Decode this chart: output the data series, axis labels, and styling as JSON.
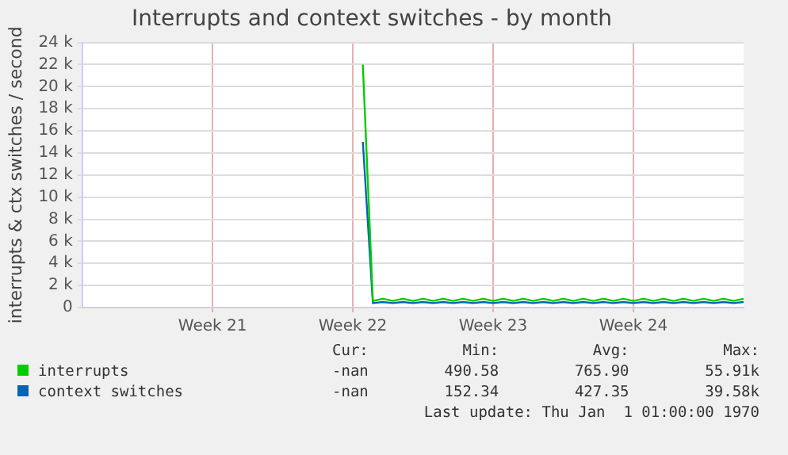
{
  "chart_data": {
    "type": "line",
    "title": "Interrupts and context switches - by month",
    "ylabel": "interrupts & ctx switches / second",
    "categories": [
      null,
      null,
      null,
      null,
      null,
      null,
      null,
      null,
      null,
      null,
      null,
      null,
      null,
      "Week 21",
      null,
      null,
      null,
      null,
      null,
      null,
      null,
      null,
      null,
      null,
      null,
      null,
      null,
      "Week 22",
      null,
      null,
      null,
      null,
      null,
      null,
      null,
      null,
      null,
      null,
      null,
      null,
      null,
      "Week 23",
      null,
      null,
      null,
      null,
      null,
      null,
      null,
      null,
      null,
      null,
      null,
      null,
      null,
      "Week 24",
      null,
      null,
      null,
      null,
      null,
      null,
      null,
      null,
      null,
      null,
      null
    ],
    "ylim": [
      0,
      24000
    ],
    "yticks": [
      {
        "value": 0,
        "label": "0"
      },
      {
        "value": 2000,
        "label": "2 k"
      },
      {
        "value": 4000,
        "label": "4 k"
      },
      {
        "value": 6000,
        "label": "6 k"
      },
      {
        "value": 8000,
        "label": "8 k"
      },
      {
        "value": 10000,
        "label": "10 k"
      },
      {
        "value": 12000,
        "label": "12 k"
      },
      {
        "value": 14000,
        "label": "14 k"
      },
      {
        "value": 16000,
        "label": "16 k"
      },
      {
        "value": 18000,
        "label": "18 k"
      },
      {
        "value": 20000,
        "label": "20 k"
      },
      {
        "value": 22000,
        "label": "22 k"
      },
      {
        "value": 24000,
        "label": "24 k"
      }
    ],
    "grid": true,
    "line_style": "solid",
    "legend": "bottom",
    "series": [
      {
        "name": "interrupts",
        "color": "#00cc00",
        "values": [
          null,
          null,
          null,
          null,
          null,
          null,
          null,
          null,
          null,
          null,
          null,
          null,
          null,
          null,
          null,
          null,
          null,
          null,
          null,
          null,
          null,
          null,
          null,
          null,
          null,
          null,
          null,
          null,
          22000,
          600,
          800,
          600,
          800,
          600,
          800,
          600,
          800,
          600,
          800,
          600,
          800,
          600,
          800,
          600,
          800,
          600,
          800,
          600,
          800,
          600,
          800,
          600,
          800,
          600,
          800,
          600,
          800,
          600,
          800,
          600,
          800,
          600,
          800,
          600,
          800,
          600,
          800
        ]
      },
      {
        "name": "context switches",
        "color": "#0066b3",
        "values": [
          null,
          null,
          null,
          null,
          null,
          null,
          null,
          null,
          null,
          null,
          null,
          null,
          null,
          null,
          null,
          null,
          null,
          null,
          null,
          null,
          null,
          null,
          null,
          null,
          null,
          null,
          null,
          null,
          15000,
          400,
          500,
          400,
          500,
          400,
          500,
          400,
          500,
          400,
          500,
          400,
          500,
          400,
          500,
          400,
          500,
          400,
          500,
          400,
          500,
          400,
          500,
          400,
          500,
          400,
          500,
          400,
          500,
          400,
          500,
          400,
          500,
          400,
          500,
          400,
          500,
          400,
          500
        ]
      }
    ],
    "annotations": [
      "Cur:",
      "Min:",
      "Avg:",
      "Max:",
      "-nan",
      "490.58",
      "765.90",
      "55.91k",
      "-nan",
      "152.34",
      "427.35",
      "39.58k",
      "Last update: Thu Jan  1 01:00:00 1970"
    ]
  }
}
